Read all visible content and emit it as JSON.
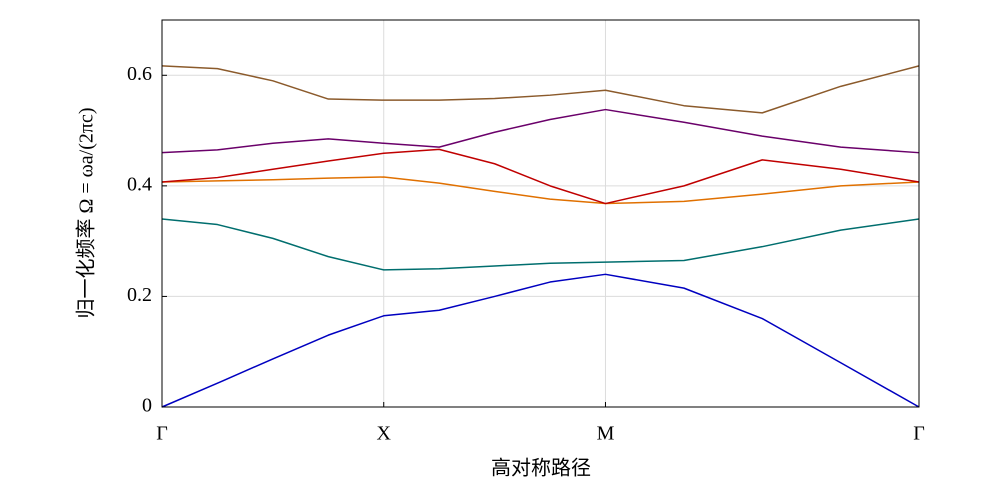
{
  "chart_data": {
    "type": "line",
    "x_label": "高对称路径",
    "y_label": "归一化频率 Ω = ωa/(2πc)",
    "x": [
      0,
      0.25,
      0.5,
      0.75,
      1,
      1.25,
      1.5,
      1.75,
      2,
      2.354,
      2.707,
      3.061,
      3.414
    ],
    "xlim": [
      0,
      3.414
    ],
    "xticks": [
      {
        "value": 0,
        "label": "Γ"
      },
      {
        "value": 1,
        "label": "X"
      },
      {
        "value": 2,
        "label": "M"
      },
      {
        "value": 3.414,
        "label": "Γ"
      }
    ],
    "ylim": [
      0,
      0.7
    ],
    "yticks": [
      0,
      0.2,
      0.4,
      0.6
    ],
    "grid": true,
    "series": [
      {
        "color": "#0000c0",
        "values": [
          0,
          0.043,
          0.087,
          0.13,
          0.165,
          0.175,
          0.2,
          0.226,
          0.24,
          0.215,
          0.16,
          0.08,
          0
        ]
      },
      {
        "color": "#006e6e",
        "values": [
          0.34,
          0.33,
          0.305,
          0.272,
          0.248,
          0.25,
          0.255,
          0.26,
          0.262,
          0.265,
          0.29,
          0.32,
          0.34
        ]
      },
      {
        "color": "#e07000",
        "values": [
          0.407,
          0.409,
          0.411,
          0.414,
          0.416,
          0.405,
          0.39,
          0.376,
          0.368,
          0.372,
          0.385,
          0.4,
          0.407
        ]
      },
      {
        "color": "#c00000",
        "values": [
          0.407,
          0.415,
          0.43,
          0.445,
          0.459,
          0.466,
          0.44,
          0.4,
          0.368,
          0.4,
          0.447,
          0.43,
          0.407
        ]
      },
      {
        "color": "#6a006a",
        "values": [
          0.46,
          0.465,
          0.477,
          0.485,
          0.477,
          0.47,
          0.497,
          0.52,
          0.538,
          0.515,
          0.49,
          0.47,
          0.46
        ]
      },
      {
        "color": "#8b5a2b",
        "values": [
          0.617,
          0.612,
          0.59,
          0.557,
          0.555,
          0.555,
          0.558,
          0.564,
          0.573,
          0.545,
          0.532,
          0.58,
          0.617
        ]
      }
    ]
  }
}
